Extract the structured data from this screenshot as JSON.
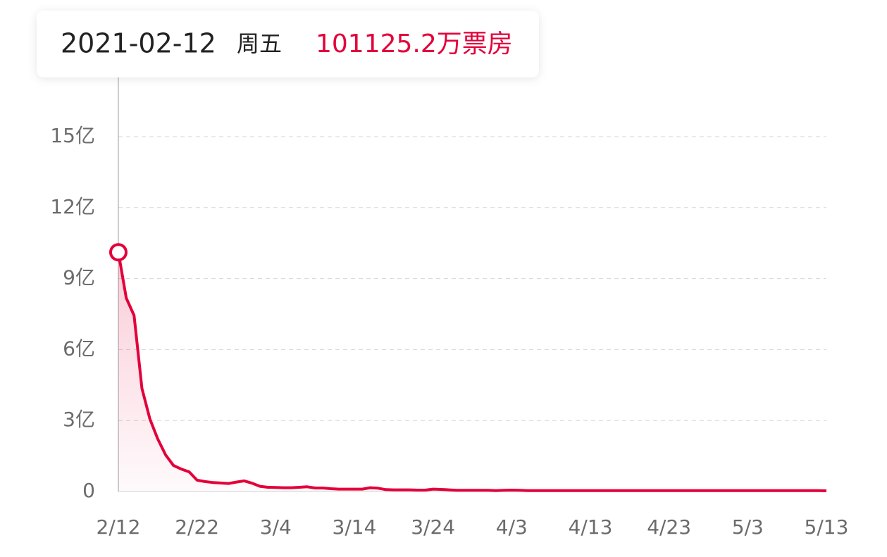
{
  "chart_data": {
    "type": "line",
    "tooltip": {
      "date": "2021-02-12",
      "weekday": "周五",
      "label": "101125.2万票房"
    },
    "categories": [
      "2/12",
      null,
      null,
      null,
      null,
      null,
      null,
      null,
      null,
      null,
      "2/22",
      null,
      null,
      null,
      null,
      null,
      null,
      null,
      null,
      null,
      "3/4",
      null,
      null,
      null,
      null,
      null,
      null,
      null,
      null,
      null,
      "3/14",
      null,
      null,
      null,
      null,
      null,
      null,
      null,
      null,
      null,
      "3/24",
      null,
      null,
      null,
      null,
      null,
      null,
      null,
      null,
      null,
      "4/3",
      null,
      null,
      null,
      null,
      null,
      null,
      null,
      null,
      null,
      "4/13",
      null,
      null,
      null,
      null,
      null,
      null,
      null,
      null,
      null,
      "4/23",
      null,
      null,
      null,
      null,
      null,
      null,
      null,
      null,
      null,
      "5/3",
      null,
      null,
      null,
      null,
      null,
      null,
      null,
      null,
      null,
      "5/13"
    ],
    "values": [
      10.11252,
      8.18,
      7.44,
      4.35,
      3.07,
      2.23,
      1.55,
      1.1,
      0.95,
      0.83,
      0.48,
      0.42,
      0.38,
      0.36,
      0.34,
      0.4,
      0.45,
      0.35,
      0.22,
      0.18,
      0.17,
      0.16,
      0.16,
      0.18,
      0.2,
      0.15,
      0.15,
      0.12,
      0.1,
      0.1,
      0.1,
      0.1,
      0.16,
      0.14,
      0.08,
      0.07,
      0.07,
      0.07,
      0.06,
      0.06,
      0.1,
      0.09,
      0.07,
      0.05,
      0.05,
      0.05,
      0.05,
      0.05,
      0.04,
      0.05,
      0.06,
      0.05,
      0.04,
      0.04,
      0.04,
      0.04,
      0.04,
      0.04,
      0.04,
      0.04,
      0.04,
      0.04,
      0.04,
      0.04,
      0.04,
      0.04,
      0.04,
      0.04,
      0.04,
      0.04,
      0.04,
      0.04,
      0.04,
      0.04,
      0.04,
      0.04,
      0.04,
      0.04,
      0.04,
      0.04,
      0.04,
      0.04,
      0.04,
      0.04,
      0.04,
      0.04,
      0.04,
      0.04,
      0.04,
      0.04,
      0.03
    ],
    "color": "#e3003a",
    "ylim": [
      0,
      17.5
    ],
    "yticks": [
      0,
      {
        "value": 3,
        "label": "3亿"
      },
      {
        "value": 6,
        "label": "6亿"
      },
      {
        "value": 9,
        "label": "9亿"
      },
      {
        "value": 12,
        "label": "12亿"
      },
      {
        "value": 15,
        "label": "15亿"
      }
    ],
    "grid": true,
    "highlight": 0
  }
}
